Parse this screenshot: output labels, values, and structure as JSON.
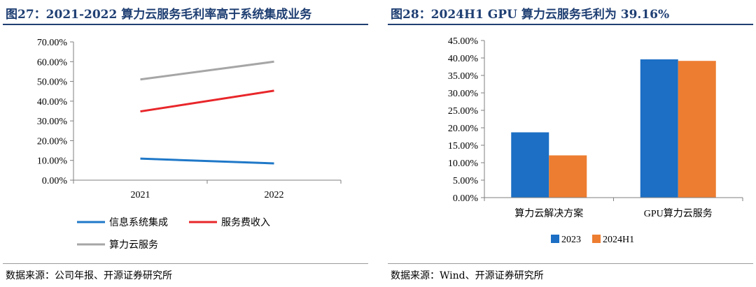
{
  "left": {
    "title": "图27：2021-2022 算力云服务毛利率高于系统集成业务",
    "source": "数据来源：公司年报、开源证券研究所",
    "chart_data": {
      "type": "line",
      "x": [
        "2021",
        "2022"
      ],
      "series": [
        {
          "name": "信息系统集成",
          "values": [
            10.9,
            8.5
          ],
          "color": "#1f78c8"
        },
        {
          "name": "服务费收入",
          "values": [
            34.8,
            45.3
          ],
          "color": "#e8262a"
        },
        {
          "name": "算力云服务",
          "values": [
            51.0,
            60.0
          ],
          "color": "#a6a6a6"
        }
      ],
      "y_ticks": [
        "0.00%",
        "10.00%",
        "20.00%",
        "30.00%",
        "40.00%",
        "50.00%",
        "60.00%",
        "70.00%"
      ],
      "ylim": [
        0,
        70
      ],
      "grid": false,
      "legend_position": "bottom"
    }
  },
  "right": {
    "title": "图28：2024H1 GPU 算力云服务毛利为 39.16%",
    "source": "数据来源：Wind、开源证券研究所",
    "chart_data": {
      "type": "bar",
      "categories": [
        "算力云解决方案",
        "GPU算力云服务"
      ],
      "series": [
        {
          "name": "2023",
          "values": [
            18.7,
            39.6
          ],
          "color": "#1c6fc4"
        },
        {
          "name": "2024H1",
          "values": [
            12.1,
            39.16
          ],
          "color": "#ed7d31"
        }
      ],
      "y_ticks": [
        "0.00%",
        "5.00%",
        "10.00%",
        "15.00%",
        "20.00%",
        "25.00%",
        "30.00%",
        "35.00%",
        "40.00%",
        "45.00%"
      ],
      "ylim": [
        0,
        45
      ],
      "grid": false,
      "legend_position": "bottom"
    }
  }
}
